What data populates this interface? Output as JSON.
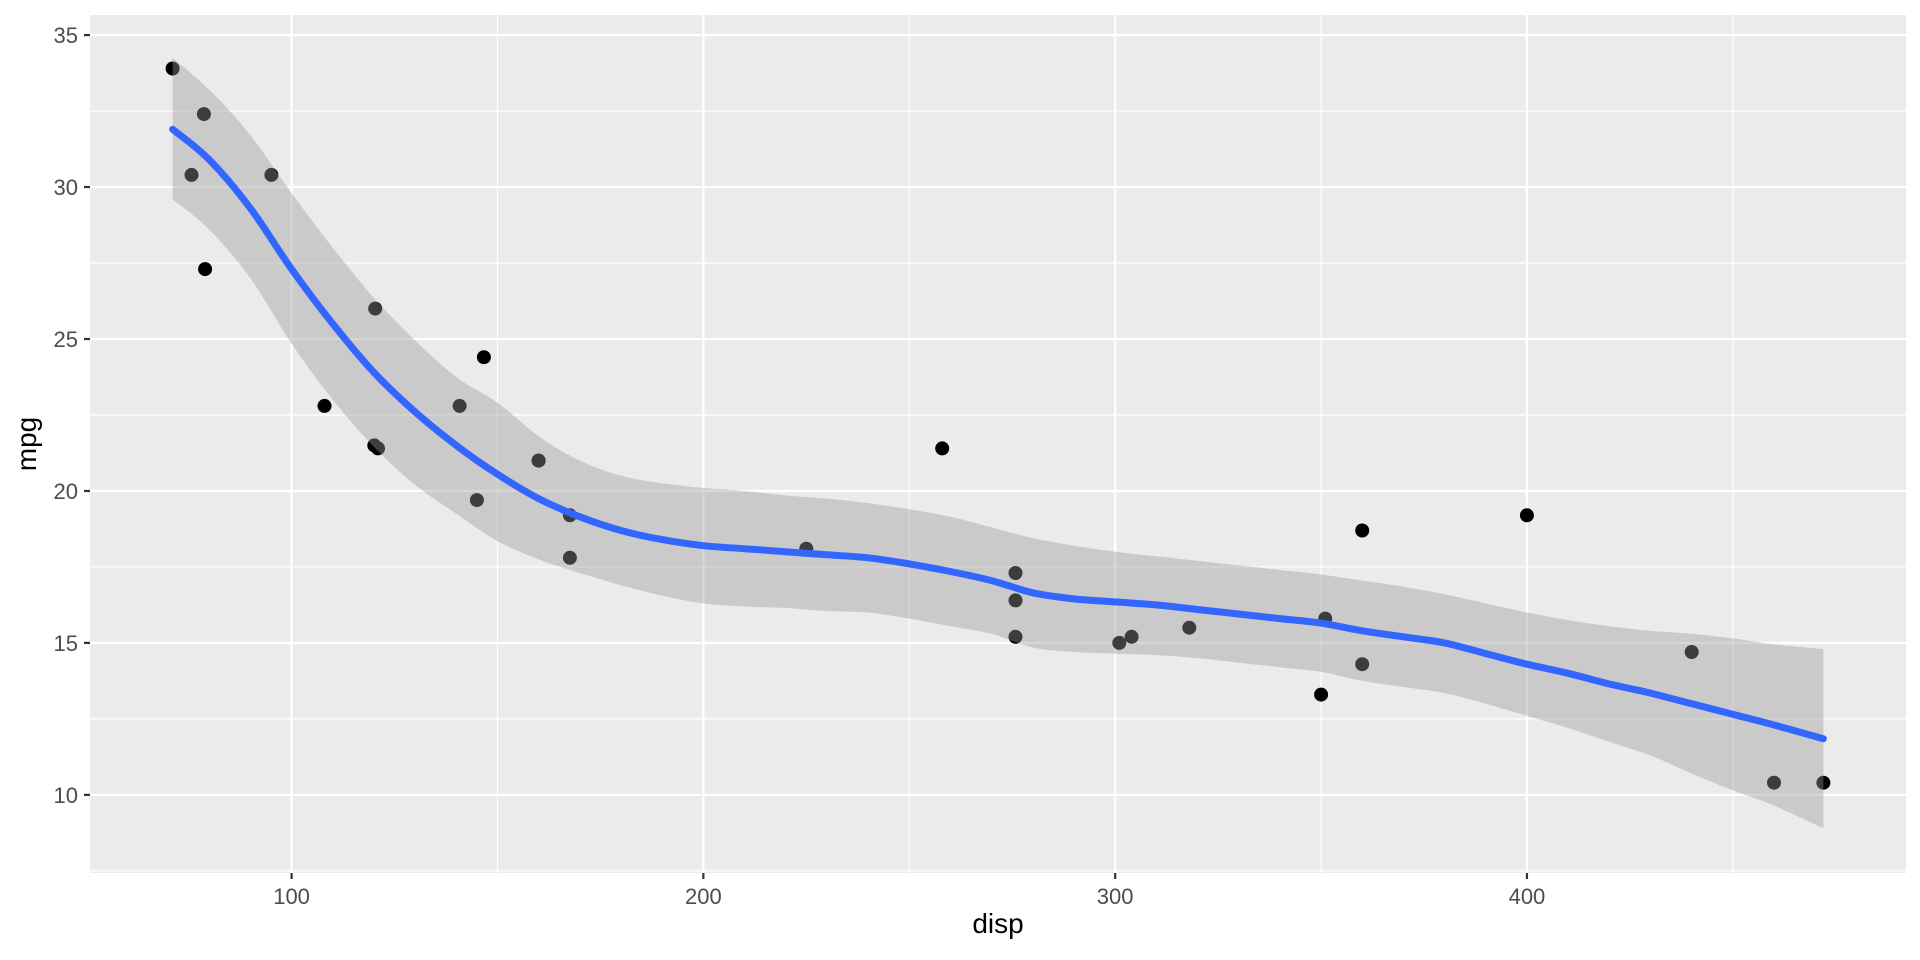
{
  "figure": {
    "xlabel": "disp",
    "ylabel": "mpg"
  },
  "chart_data": {
    "type": "scatter",
    "title": "",
    "xlabel": "disp",
    "ylabel": "mpg",
    "legend": "none",
    "grid": "white major and minor gridlines on grey panel",
    "xlim": [
      51.05,
      492.05
    ],
    "ylim": [
      7.43,
      35.66
    ],
    "x_major_ticks": [
      100,
      200,
      300,
      400
    ],
    "x_minor_ticks": [
      150,
      250,
      350,
      450
    ],
    "y_major_ticks": [
      10,
      15,
      20,
      25,
      30,
      35
    ],
    "y_minor_ticks": [
      7.5,
      12.5,
      17.5,
      22.5,
      27.5,
      32.5
    ],
    "x_tick_labels": [
      "100",
      "200",
      "300",
      "400"
    ],
    "y_tick_labels": [
      "10",
      "15",
      "20",
      "25",
      "30",
      "35"
    ],
    "points": [
      [
        160.0,
        21.0
      ],
      [
        160.0,
        21.0
      ],
      [
        108.0,
        22.8
      ],
      [
        258.0,
        21.4
      ],
      [
        360.0,
        18.7
      ],
      [
        225.0,
        18.1
      ],
      [
        360.0,
        14.3
      ],
      [
        146.7,
        24.4
      ],
      [
        140.8,
        22.8
      ],
      [
        167.6,
        19.2
      ],
      [
        167.6,
        17.8
      ],
      [
        275.8,
        16.4
      ],
      [
        275.8,
        17.3
      ],
      [
        275.8,
        15.2
      ],
      [
        472.0,
        10.4
      ],
      [
        460.0,
        10.4
      ],
      [
        440.0,
        14.7
      ],
      [
        78.7,
        32.4
      ],
      [
        75.7,
        30.4
      ],
      [
        71.1,
        33.9
      ],
      [
        120.1,
        21.5
      ],
      [
        318.0,
        15.5
      ],
      [
        304.0,
        15.2
      ],
      [
        350.0,
        13.3
      ],
      [
        400.0,
        19.2
      ],
      [
        79.0,
        27.3
      ],
      [
        120.3,
        26.0
      ],
      [
        95.1,
        30.4
      ],
      [
        351.0,
        15.8
      ],
      [
        145.0,
        19.7
      ],
      [
        301.0,
        15.0
      ],
      [
        121.0,
        21.4
      ]
    ],
    "smooth": {
      "method": "loess",
      "x": [
        71.1,
        80,
        90,
        100,
        110,
        120,
        130,
        140,
        150,
        160,
        170,
        180,
        190,
        200,
        210,
        220,
        230,
        240,
        250,
        260,
        270,
        280,
        290,
        300,
        310,
        320,
        330,
        340,
        350,
        360,
        370,
        380,
        390,
        400,
        410,
        420,
        430,
        440,
        450,
        460,
        472
      ],
      "y": [
        31.9,
        30.9,
        29.3,
        27.3,
        25.5,
        23.9,
        22.6,
        21.5,
        20.55,
        19.75,
        19.15,
        18.7,
        18.4,
        18.2,
        18.1,
        18.0,
        17.9,
        17.8,
        17.6,
        17.35,
        17.05,
        16.65,
        16.45,
        16.35,
        16.25,
        16.1,
        15.95,
        15.8,
        15.65,
        15.4,
        15.2,
        15.0,
        14.65,
        14.3,
        14.0,
        13.65,
        13.35,
        13.0,
        12.65,
        12.3,
        11.85
      ],
      "upper": [
        34.25,
        33.2,
        31.7,
        29.8,
        28.0,
        26.35,
        24.95,
        23.75,
        22.9,
        21.8,
        21.0,
        20.5,
        20.25,
        20.1,
        20.0,
        19.85,
        19.75,
        19.6,
        19.4,
        19.15,
        18.8,
        18.45,
        18.2,
        18.0,
        17.85,
        17.7,
        17.55,
        17.4,
        17.25,
        17.05,
        16.85,
        16.6,
        16.3,
        16.0,
        15.75,
        15.55,
        15.4,
        15.3,
        15.15,
        14.95,
        14.8
      ],
      "lower": [
        29.6,
        28.6,
        27.0,
        24.85,
        23.0,
        21.45,
        20.2,
        19.25,
        18.35,
        17.75,
        17.3,
        16.9,
        16.55,
        16.3,
        16.2,
        16.15,
        16.05,
        16.0,
        15.8,
        15.55,
        15.3,
        14.85,
        14.7,
        14.65,
        14.6,
        14.5,
        14.35,
        14.2,
        14.05,
        13.75,
        13.55,
        13.35,
        13.0,
        12.6,
        12.2,
        11.75,
        11.3,
        10.7,
        10.15,
        9.65,
        8.9
      ]
    },
    "colors": {
      "panel_background": "#EBEBEB",
      "gridline": "#FFFFFF",
      "point": "#000000",
      "smooth_line": "#3366FF",
      "ribbon_fill": "#999999",
      "ribbon_opacity": 0.4,
      "tick_mark": "#333333",
      "tick_label_text": "#4D4D4D",
      "axis_title_text": "#000000",
      "outer_background": "#FFFFFF"
    }
  }
}
